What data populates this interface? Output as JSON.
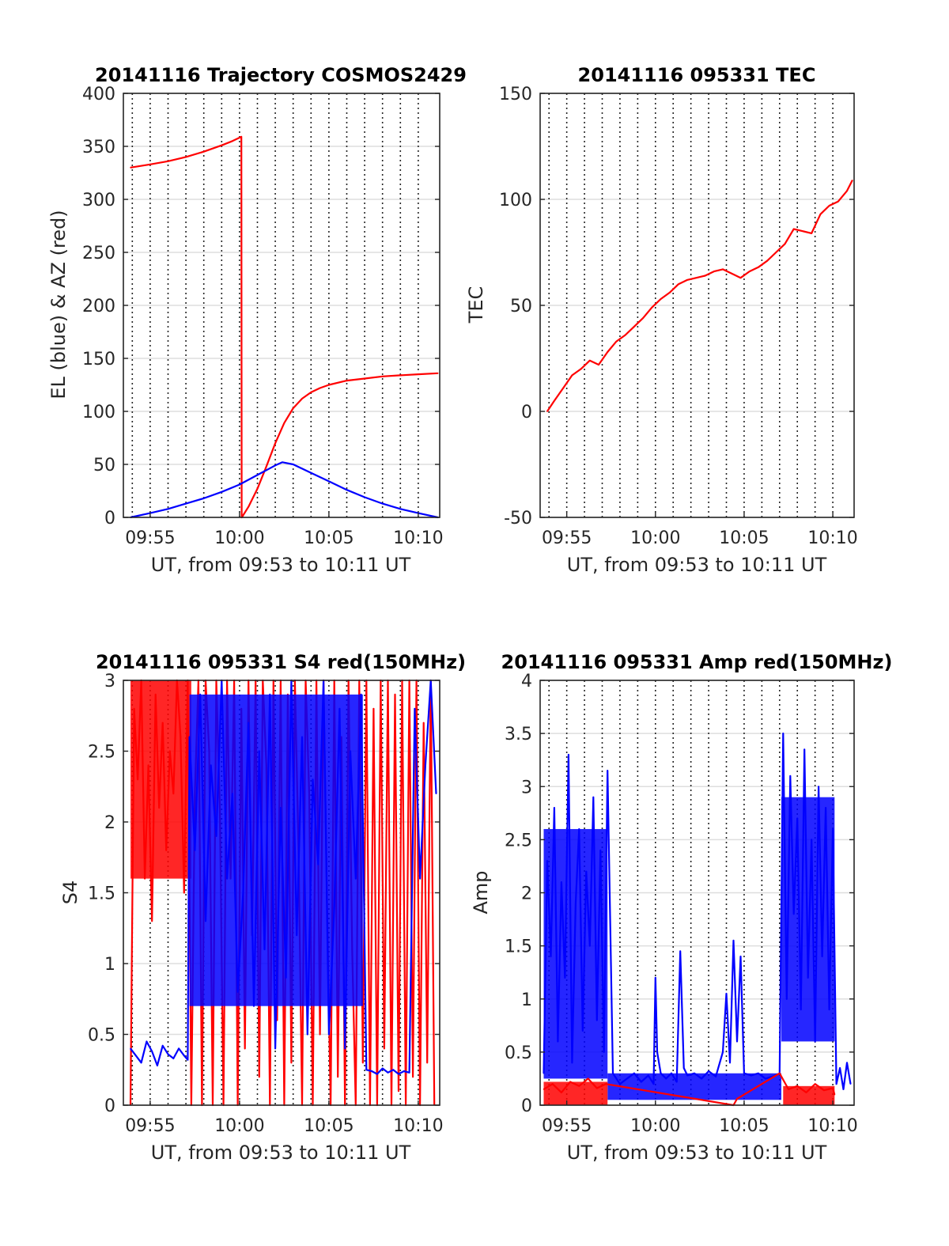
{
  "colors": {
    "red": "#ff0000",
    "blue": "#0000ff",
    "grid_solid": "#dedede",
    "grid_dotted": "#262626",
    "axis": "#262626"
  },
  "chart_data": [
    {
      "type": "line",
      "title": "20141116 Trajectory COSMOS2429",
      "xlabel": "UT, from 09:53 to 10:11 UT",
      "ylabel": "EL (blue) & AZ (red)",
      "xlim_minutes": [
        593.5,
        611.2
      ],
      "ylim": [
        0,
        400
      ],
      "yticks": [
        0,
        50,
        100,
        150,
        200,
        250,
        300,
        350,
        400
      ],
      "xticks": [
        {
          "label": "09:55",
          "minutes": 595
        },
        {
          "label": "10:00",
          "minutes": 600
        },
        {
          "label": "10:05",
          "minutes": 605
        },
        {
          "label": "10:10",
          "minutes": 610
        }
      ],
      "vertical_dotted_grid_minutes": [
        594,
        595,
        596,
        597,
        598,
        599,
        600,
        601,
        602,
        603,
        604,
        605,
        606,
        607,
        608,
        609,
        610
      ],
      "horizontal_grid": "solid",
      "series": [
        {
          "color": "red",
          "x": [
            593.9,
            595.0,
            596.0,
            597.0,
            598.0,
            599.0,
            599.6,
            600.1,
            600.12,
            600.13,
            600.5,
            601.0,
            601.5,
            602.0,
            602.5,
            603.0,
            603.5,
            604.0,
            604.5,
            605.0,
            606.0,
            607.0,
            608.0,
            609.0,
            610.0,
            611.1
          ],
          "values": [
            330,
            333,
            336,
            340,
            345,
            351,
            355,
            359,
            0,
            0,
            10,
            27,
            48,
            70,
            89,
            103,
            112,
            118,
            122,
            125,
            129,
            131,
            133,
            134,
            135,
            136
          ]
        },
        {
          "color": "blue",
          "x": [
            593.9,
            595.0,
            596.0,
            597.0,
            598.0,
            599.0,
            600.0,
            601.0,
            602.0,
            602.4,
            603.0,
            604.0,
            605.0,
            606.0,
            607.0,
            608.0,
            609.0,
            610.0,
            611.1
          ],
          "values": [
            0,
            4,
            8,
            13,
            18,
            24,
            31,
            40,
            49,
            52,
            50,
            42,
            34,
            26,
            19,
            13,
            8,
            4,
            0
          ]
        }
      ]
    },
    {
      "type": "line",
      "title": "20141116 095331 TEC",
      "xlabel": "UT, from 09:53 to 10:11 UT",
      "ylabel": "TEC",
      "xlim_minutes": [
        593.5,
        611.2
      ],
      "ylim": [
        -50,
        150
      ],
      "yticks": [
        -50,
        0,
        50,
        100,
        150
      ],
      "xticks": [
        {
          "label": "09:55",
          "minutes": 595
        },
        {
          "label": "10:00",
          "minutes": 600
        },
        {
          "label": "10:05",
          "minutes": 605
        },
        {
          "label": "10:10",
          "minutes": 610
        }
      ],
      "vertical_dotted_grid_minutes": [
        594,
        595,
        596,
        597,
        598,
        599,
        600,
        601,
        602,
        603,
        604,
        605,
        606,
        607,
        608,
        609,
        610
      ],
      "horizontal_grid": "solid",
      "series": [
        {
          "color": "red",
          "x": [
            593.9,
            594.3,
            594.8,
            595.3,
            595.8,
            596.3,
            596.8,
            597.3,
            597.8,
            598.3,
            598.8,
            599.3,
            599.8,
            600.3,
            600.8,
            601.3,
            601.8,
            602.3,
            602.8,
            603.3,
            603.8,
            604.3,
            604.8,
            605.3,
            605.8,
            606.3,
            606.8,
            607.3,
            607.8,
            608.3,
            608.8,
            609.3,
            609.8,
            610.3,
            610.8,
            611.1
          ],
          "values": [
            0,
            5,
            11,
            17,
            20,
            24,
            22,
            28,
            33,
            36,
            40,
            44,
            49,
            53,
            56,
            60,
            62,
            63,
            64,
            66,
            67,
            65,
            63,
            66,
            68,
            71,
            75,
            79,
            86,
            85,
            84,
            93,
            97,
            99,
            104,
            109
          ]
        }
      ]
    },
    {
      "type": "line",
      "title": "20141116 095331 S4 red(150MHz)",
      "xlabel": "UT, from 09:53 to 10:11 UT",
      "ylabel": "S4",
      "xlim_minutes": [
        593.5,
        611.2
      ],
      "ylim": [
        0,
        3
      ],
      "yticks": [
        0,
        0.5,
        1,
        1.5,
        2,
        2.5,
        3
      ],
      "ytick_labels": [
        "0",
        "0.5",
        "1",
        "1.5",
        "2",
        "2.5",
        "3"
      ],
      "xticks": [
        {
          "label": "09:55",
          "minutes": 595
        },
        {
          "label": "10:00",
          "minutes": 600
        },
        {
          "label": "10:05",
          "minutes": 605
        },
        {
          "label": "10:10",
          "minutes": 610
        }
      ],
      "vertical_dotted_grid_minutes": [
        594,
        595,
        596,
        597,
        598,
        599,
        600,
        601,
        602,
        603,
        604,
        605,
        606,
        607,
        608,
        609,
        610
      ],
      "horizontal_grid": "solid",
      "series": [
        {
          "color": "red",
          "x": [
            593.9,
            594.1,
            594.3,
            594.5,
            594.7,
            594.9,
            595.1,
            595.3,
            595.5,
            595.7,
            595.9,
            596.1,
            596.3,
            596.5,
            596.7,
            596.9,
            597.1,
            597.3,
            597.5,
            597.7,
            597.9,
            598.1,
            598.3,
            598.5,
            598.7,
            598.9,
            599.1,
            599.3,
            599.5,
            599.7,
            599.9,
            600.1,
            600.3,
            600.5,
            600.7,
            600.9,
            601.1,
            601.3,
            601.5,
            601.7,
            601.9,
            602.1,
            602.3,
            602.5,
            602.7,
            602.9,
            603.1,
            603.3,
            603.5,
            603.7,
            603.9,
            604.1,
            604.3,
            604.5,
            604.7,
            604.9,
            605.1,
            605.3,
            605.5,
            605.7,
            605.9,
            606.1,
            606.3,
            606.5,
            606.7,
            606.9,
            607.1,
            607.3,
            607.5,
            607.7,
            607.9,
            608.1,
            608.3,
            608.5,
            608.7,
            608.9,
            609.1,
            609.3,
            609.5,
            609.7,
            609.9,
            610.1,
            610.3,
            610.5,
            610.7,
            610.9
          ],
          "values": [
            0,
            2.8,
            2.3,
            3,
            1.6,
            2.4,
            1.3,
            2.9,
            2.1,
            2.7,
            1.8,
            2.5,
            2.2,
            3,
            2.6,
            1.5,
            3,
            0,
            2.2,
            3,
            0,
            3,
            2.5,
            0,
            3,
            2.1,
            0,
            3,
            1.6,
            3,
            0,
            2.8,
            0.4,
            3,
            1.2,
            3,
            0.2,
            3,
            2.4,
            0,
            3,
            0.6,
            3,
            0,
            2.9,
            0.3,
            3,
            1.8,
            0,
            3,
            2.2,
            0,
            3,
            0.5,
            3,
            1.4,
            0,
            3,
            0.2,
            2.6,
            0,
            3,
            1.1,
            0,
            3,
            0.3,
            3,
            0,
            2.8,
            0,
            3,
            0.4,
            3,
            0,
            2.9,
            0.1,
            3,
            0,
            3,
            0.2,
            3,
            0,
            2.7,
            0.3,
            3,
            0
          ],
          "fill_color": "red",
          "fill_range": [
            593.9,
            597.3
          ],
          "fill_between": [
            1.6,
            3
          ]
        },
        {
          "color": "blue",
          "x": [
            593.9,
            594.2,
            594.5,
            594.8,
            595.1,
            595.4,
            595.7,
            596.0,
            596.3,
            596.6,
            596.9,
            597.1,
            597.2,
            597.5,
            597.8,
            598.1,
            598.4,
            598.7,
            599.0,
            599.3,
            599.6,
            599.9,
            600.2,
            600.5,
            600.8,
            601.1,
            601.4,
            601.7,
            602.0,
            602.3,
            602.6,
            602.9,
            603.2,
            603.5,
            603.8,
            604.1,
            604.4,
            604.7,
            605.0,
            605.3,
            605.6,
            605.9,
            606.2,
            606.5,
            606.8,
            607.1,
            607.4,
            607.7,
            608.0,
            608.3,
            608.6,
            608.9,
            609.2,
            609.5,
            609.8,
            610.1,
            610.4,
            610.7,
            611.0
          ],
          "values": [
            0.4,
            0.35,
            0.3,
            0.45,
            0.38,
            0.28,
            0.42,
            0.36,
            0.33,
            0.4,
            0.35,
            0.32,
            2.6,
            1.8,
            2.9,
            1.3,
            2.4,
            1.9,
            3,
            1.6,
            2.2,
            0.8,
            1.5,
            2.7,
            0.7,
            2.5,
            1.1,
            2.9,
            0.4,
            2.1,
            0.9,
            3,
            1.2,
            2.6,
            0.5,
            2.3,
            1.7,
            3,
            0.5,
            1.4,
            2.8,
            0.4,
            2.5,
            1.6,
            2.9,
            0.25,
            0.24,
            0.22,
            0.26,
            0.23,
            0.25,
            0.22,
            0.24,
            0.23,
            2.8,
            1.6,
            2.4,
            3,
            2.2
          ],
          "fill_color": "blue",
          "fill_range": [
            597.2,
            606.9
          ],
          "fill_between": [
            0.7,
            2.9
          ]
        }
      ]
    },
    {
      "type": "line",
      "title": "20141116 095331 Amp red(150MHz)",
      "xlabel": "UT, from 09:53 to 10:11 UT",
      "ylabel": "Amp",
      "xlim_minutes": [
        593.5,
        611.2
      ],
      "ylim": [
        0,
        4
      ],
      "yticks": [
        0,
        0.5,
        1,
        1.5,
        2,
        2.5,
        3,
        3.5,
        4
      ],
      "ytick_labels": [
        "0",
        "0.5",
        "1",
        "1.5",
        "2",
        "2.5",
        "3",
        "3.5",
        "4"
      ],
      "xticks": [
        {
          "label": "09:55",
          "minutes": 595
        },
        {
          "label": "10:00",
          "minutes": 600
        },
        {
          "label": "10:05",
          "minutes": 605
        },
        {
          "label": "10:10",
          "minutes": 610
        }
      ],
      "vertical_dotted_grid_minutes": [
        594,
        595,
        596,
        597,
        598,
        599,
        600,
        601,
        602,
        603,
        604,
        605,
        606,
        607,
        608,
        609,
        610
      ],
      "horizontal_grid": "solid",
      "series": [
        {
          "color": "blue",
          "x": [
            593.7,
            593.9,
            594.1,
            594.3,
            594.5,
            594.7,
            594.9,
            595.1,
            595.3,
            595.5,
            595.7,
            595.9,
            596.1,
            596.3,
            596.5,
            596.7,
            596.9,
            597.1,
            597.3,
            597.6,
            598.0,
            598.4,
            598.8,
            599.2,
            599.6,
            599.9,
            600.0,
            600.1,
            600.3,
            600.6,
            600.9,
            601.2,
            601.4,
            601.6,
            601.8,
            602.2,
            602.6,
            603.0,
            603.4,
            603.8,
            604.0,
            604.2,
            604.4,
            604.6,
            604.8,
            605.0,
            605.4,
            605.8,
            606.2,
            606.6,
            607.0,
            607.2,
            607.4,
            607.6,
            607.8,
            608.0,
            608.2,
            608.4,
            608.6,
            608.8,
            609.0,
            609.2,
            609.4,
            609.6,
            609.8,
            610.0,
            610.2,
            610.4,
            610.6,
            610.8,
            611.0
          ],
          "values": [
            0.3,
            2.3,
            1.4,
            2.8,
            0.6,
            2.1,
            1.2,
            3.3,
            0.4,
            1.9,
            2.6,
            0.7,
            2.2,
            1.5,
            2.9,
            0.8,
            2.4,
            0.5,
            3.15,
            0.3,
            0.2,
            0.25,
            0.3,
            0.22,
            0.28,
            0.2,
            1.2,
            0.5,
            0.3,
            0.25,
            0.3,
            0.22,
            1.45,
            0.35,
            0.28,
            0.3,
            0.25,
            0.32,
            0.27,
            0.5,
            1.05,
            0.4,
            1.55,
            0.6,
            1.4,
            0.3,
            0.28,
            0.3,
            0.25,
            0.27,
            0.3,
            3.5,
            1.0,
            3.1,
            1.8,
            2.7,
            0.9,
            3.35,
            1.2,
            2.5,
            0.6,
            3.0,
            1.4,
            2.8,
            0.9,
            2.6,
            0.2,
            0.35,
            0.15,
            0.4,
            0.2
          ],
          "fill_color": "blue",
          "fill_ranges": [
            [
              593.7,
              597.3,
              0.25,
              2.6
            ],
            [
              607.1,
              610.1,
              0.6,
              2.9
            ],
            [
              597.3,
              607.1,
              0.05,
              0.3
            ]
          ]
        },
        {
          "color": "red",
          "x": [
            593.7,
            594.2,
            594.7,
            595.2,
            595.7,
            596.2,
            596.7,
            597.2,
            604.4,
            604.6,
            607.0,
            607.5,
            608.0,
            608.5,
            609.0,
            609.5,
            610.0,
            610.1
          ],
          "values": [
            0.15,
            0.2,
            0.12,
            0.22,
            0.18,
            0.25,
            0.16,
            0.2,
            0.0,
            0.06,
            0.3,
            0.15,
            0.18,
            0.12,
            0.2,
            0.14,
            0.16,
            0.1
          ],
          "fill_color": "red",
          "fill_ranges": [
            [
              593.7,
              597.3,
              0.0,
              0.22
            ],
            [
              607.2,
              610.1,
              0.0,
              0.18
            ]
          ]
        }
      ]
    }
  ]
}
